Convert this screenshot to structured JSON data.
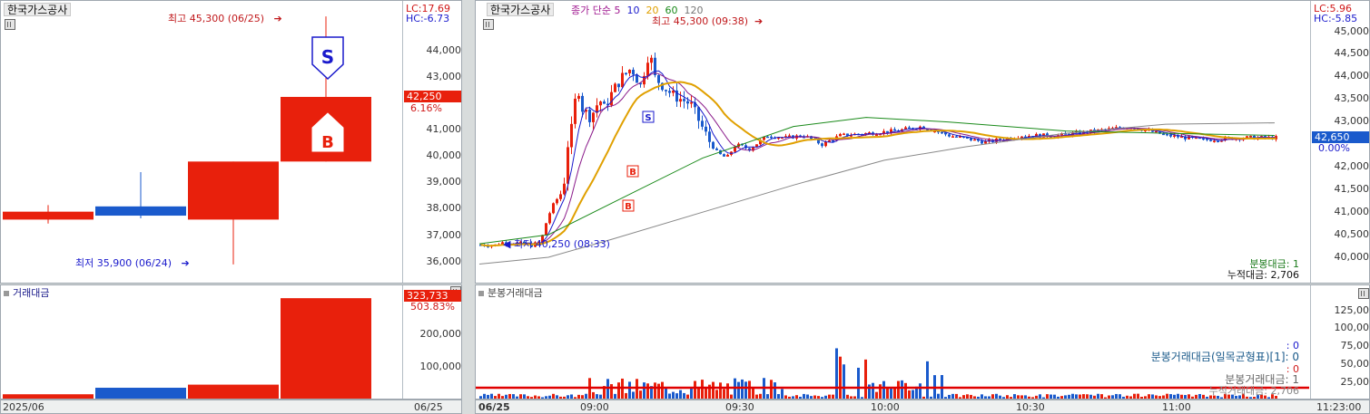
{
  "left": {
    "stock_name": "한국가스공사",
    "lc_label": "LC:17.69",
    "hc_label": "HC:-6.73",
    "high_note": "최고 45,300 (06/25)",
    "low_note": "최저 35,900 (06/24)",
    "price_axis": [
      "43,000",
      "42,000",
      "41,000",
      "40,000",
      "39,000",
      "38,000",
      "37,000",
      "36,000",
      "44,000"
    ],
    "price_box": "42,250",
    "price_pct": "6.16%",
    "sell_marker": "S",
    "buy_marker": "B",
    "volume_title": "거래대금",
    "volume_axis": [
      "200,000",
      "100,000"
    ],
    "volume_box": "323,733",
    "volume_pct": "503.83%",
    "x_left": "2025/06",
    "x_right": "06/25",
    "candles": [
      {
        "open": 37900,
        "close": 37600,
        "high": 38150,
        "low": 37450,
        "color": "red"
      },
      {
        "open": 38100,
        "close": 37750,
        "high": 39400,
        "low": 37650,
        "color": "blue"
      },
      {
        "open": 37600,
        "close": 39800,
        "high": 39800,
        "low": 35900,
        "color": "red"
      },
      {
        "open": 39800,
        "close": 42250,
        "high": 45300,
        "low": 39800,
        "color": "red"
      }
    ],
    "volumes": [
      {
        "value": 14000,
        "color": "red"
      },
      {
        "value": 35000,
        "color": "blue"
      },
      {
        "value": 45000,
        "color": "red"
      },
      {
        "value": 323733,
        "color": "red"
      }
    ]
  },
  "right": {
    "stock_name": "한국가스공사",
    "legend_prefix": "종가 단순",
    "ma_labels": [
      "5",
      "10",
      "20",
      "60",
      "120"
    ],
    "ma_colors": [
      "#1a1acc",
      "#8a1a8a",
      "#e0a000",
      "#1a8a1a",
      "#888888"
    ],
    "lc_label": "LC:5.96",
    "hc_label": "HC:-5.85",
    "high_note": "최고 45,300 (09:38)",
    "low_note": "최저 40,250 (08:33)",
    "price_axis": [
      "45,000",
      "44,500",
      "44,000",
      "43,500",
      "43,000",
      "42,500",
      "42,000",
      "41,500",
      "41,000",
      "40,500",
      "40,000"
    ],
    "price_box": "42,650",
    "price_pct": "0.00%",
    "bun_label": "분봉대금: 1",
    "cum_label": "누적대금: 2,706",
    "volume_title": "분봉거래대금",
    "volume_axis": [
      "125,00",
      "100,00",
      "75,00",
      "50,00",
      "25,00"
    ],
    "vol_legend_1": ": 0",
    "vol_legend_2": "분봉거래대금(일목균형표)[1]: 0",
    "vol_legend_3": ": 0",
    "vol_legend_4": "분봉거래대금: 1",
    "vol_legend_5": "누적거래대금: 2,706",
    "x_ticks": [
      "06/25",
      "09:00",
      "09:30",
      "10:00",
      "10:30",
      "11:00",
      "11:23:00"
    ]
  }
}
